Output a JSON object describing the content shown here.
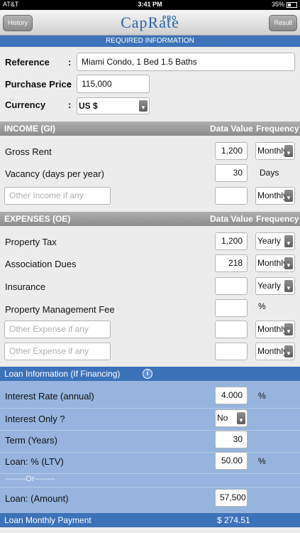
{
  "status": {
    "carrier": "AT&T",
    "time": "3:41 PM",
    "battery": "35%"
  },
  "nav": {
    "history_label": "History",
    "result_label": "Result",
    "logo": "CapRate",
    "logo_sup": "PRO"
  },
  "required_header": "REQUIRED INFORMATION",
  "required": {
    "reference": {
      "label": "Reference",
      "value": "Miami Condo, 1 Bed 1.5 Baths"
    },
    "purchase_price": {
      "label": "Purchase Price",
      "value": "115,000"
    },
    "currency": {
      "label": "Currency",
      "value": "US $"
    }
  },
  "income": {
    "title": "INCOME (GI)",
    "col_value": "Data Value",
    "col_freq": "Frequency",
    "rows": [
      {
        "label": "Gross Rent",
        "value": "1,200",
        "freq": "Monthly"
      },
      {
        "label": "Vacancy  (days per year)",
        "value": "30",
        "unit": "Days"
      },
      {
        "placeholder": "Other Income if any",
        "value": "",
        "freq": "Monthly"
      }
    ]
  },
  "expenses": {
    "title": "EXPENSES (OE)",
    "col_value": "Data Value",
    "col_freq": "Frequency",
    "rows": [
      {
        "label": "Property Tax",
        "value": "1,200",
        "freq": "Yearly"
      },
      {
        "label": "Association Dues",
        "value": "218",
        "freq": "Monthly"
      },
      {
        "label": "Insurance",
        "value": "",
        "freq": "Yearly"
      },
      {
        "label": "Property Management Fee",
        "value": "",
        "unit": "%"
      },
      {
        "placeholder": "Other Expense if any",
        "value": "",
        "freq": "Monthly"
      },
      {
        "placeholder": "Other Expense if any",
        "value": "",
        "freq": "Monthly"
      }
    ]
  },
  "loan": {
    "title": "Loan Information (If Financing)",
    "interest_rate": {
      "label": "Interest Rate (annual)",
      "value": "4.000",
      "unit": "%"
    },
    "interest_only": {
      "label": "Interest Only ?",
      "value": "No"
    },
    "term": {
      "label": "Term (Years)",
      "value": "30"
    },
    "ltv": {
      "label": "Loan: % (LTV)",
      "value": "50.00",
      "unit": "%"
    },
    "or_text": "--------Or--------",
    "amount": {
      "label": "Loan: (Amount)",
      "value": "57,500"
    },
    "monthly_payment": {
      "label": "Loan Monthly Payment",
      "value": "$ 274.51"
    }
  },
  "colors": {
    "nav_blue": "#3e73b8",
    "loan_bg": "#96b4de",
    "section_gray": "#9d9d9d"
  },
  "icons": {
    "chevron": "chevron-down-icon",
    "info": "info-icon"
  }
}
